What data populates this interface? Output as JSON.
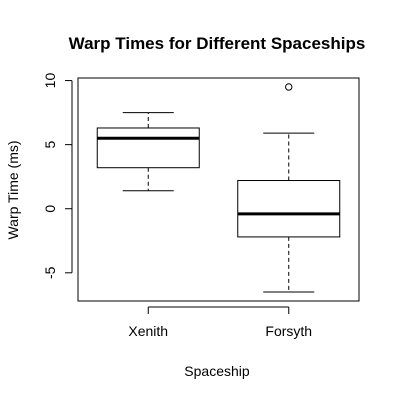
{
  "chart_data": {
    "type": "boxplot",
    "title": "Warp Times for Different Spaceships",
    "xlabel": "Spaceship",
    "ylabel": "Warp Time (ms)",
    "ylim": [
      -7.2,
      10.2
    ],
    "yticks": [
      -5,
      0,
      5,
      10
    ],
    "yticklabels": [
      "-5",
      "0",
      "5",
      "10"
    ],
    "grid": false,
    "categories": [
      "Xenith",
      "Forsyth"
    ],
    "boxes": [
      {
        "name": "Xenith",
        "whisker_low": 1.4,
        "q1": 3.2,
        "median": 5.5,
        "q3": 6.3,
        "whisker_high": 7.5,
        "outliers": []
      },
      {
        "name": "Forsyth",
        "whisker_low": -6.5,
        "q1": -2.2,
        "median": -0.4,
        "q3": 2.2,
        "whisker_high": 5.9,
        "outliers": [
          9.5
        ]
      }
    ]
  }
}
